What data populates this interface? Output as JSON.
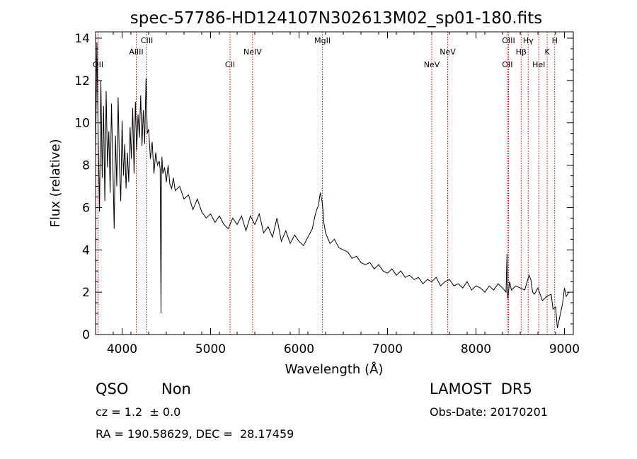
{
  "chart_data": {
    "type": "line",
    "title": "spec-57786-HD124107N302613M02_sp01-180.fits",
    "xlabel": "Wavelength (Å)",
    "ylabel": "Flux (relative)",
    "xlim": [
      3700,
      9100
    ],
    "ylim": [
      0,
      14.3
    ],
    "x_ticks": [
      4000,
      5000,
      6000,
      7000,
      8000,
      9000
    ],
    "y_ticks": [
      0,
      2,
      4,
      6,
      8,
      10,
      12,
      14
    ],
    "grid": false,
    "series": [
      {
        "x": [
          3700,
          3715,
          3730,
          3745,
          3760,
          3775,
          3790,
          3805,
          3820,
          3835,
          3850,
          3865,
          3880,
          3895,
          3910,
          3925,
          3940,
          3955,
          3970,
          3985,
          4000,
          4015,
          4030,
          4045,
          4060,
          4075,
          4090,
          4105,
          4120,
          4135,
          4150,
          4165,
          4180,
          4195,
          4210,
          4225,
          4240,
          4255,
          4270,
          4285,
          4300,
          4320,
          4340,
          4360,
          4380,
          4400,
          4420,
          4430,
          4440,
          4445,
          4450,
          4460,
          4480,
          4500,
          4520,
          4540,
          4560,
          4580,
          4600,
          4650,
          4700,
          4750,
          4800,
          4850,
          4900,
          4950,
          5000,
          5050,
          5100,
          5150,
          5200,
          5250,
          5300,
          5350,
          5400,
          5450,
          5500,
          5550,
          5600,
          5650,
          5700,
          5750,
          5800,
          5850,
          5900,
          5950,
          6000,
          6050,
          6100,
          6150,
          6180,
          6200,
          6220,
          6240,
          6260,
          6270,
          6280,
          6300,
          6320,
          6350,
          6400,
          6450,
          6500,
          6550,
          6600,
          6650,
          6700,
          6750,
          6800,
          6850,
          6900,
          6950,
          7000,
          7050,
          7100,
          7150,
          7200,
          7250,
          7300,
          7350,
          7400,
          7450,
          7500,
          7550,
          7600,
          7650,
          7700,
          7750,
          7800,
          7850,
          7900,
          7950,
          8000,
          8050,
          8100,
          8150,
          8200,
          8250,
          8300,
          8340,
          8350,
          8355,
          8360,
          8380,
          8400,
          8450,
          8500,
          8550,
          8600,
          8620,
          8640,
          8660,
          8700,
          8750,
          8800,
          8850,
          8870,
          8900,
          8920,
          8950,
          8980,
          9000,
          9020,
          9050
        ],
        "y": [
          8.5,
          13.8,
          9.2,
          5.8,
          12.0,
          7.4,
          10.8,
          6.3,
          11.5,
          7.9,
          9.6,
          6.7,
          10.9,
          8.1,
          5.0,
          9.4,
          7.0,
          11.2,
          8.0,
          6.3,
          10.1,
          7.5,
          9.0,
          6.9,
          8.6,
          7.2,
          9.8,
          8.3,
          10.7,
          7.6,
          11.0,
          8.7,
          10.4,
          9.3,
          11.3,
          8.9,
          10.6,
          9.0,
          12.1,
          9.5,
          9.7,
          8.3,
          9.1,
          7.6,
          8.6,
          8.0,
          8.2,
          7.8,
          1.0,
          7.5,
          8.4,
          7.6,
          7.9,
          7.2,
          8.0,
          7.1,
          6.9,
          7.4,
          6.8,
          7.0,
          6.4,
          6.6,
          5.9,
          6.4,
          5.8,
          5.5,
          5.7,
          5.3,
          5.6,
          5.2,
          5.0,
          5.5,
          5.2,
          5.6,
          4.9,
          5.6,
          5.2,
          5.7,
          4.8,
          5.1,
          4.6,
          5.5,
          4.4,
          4.9,
          4.3,
          4.7,
          4.4,
          4.2,
          4.6,
          5.0,
          5.6,
          5.9,
          6.1,
          6.7,
          6.3,
          5.9,
          5.3,
          4.8,
          4.6,
          4.3,
          4.5,
          4.1,
          4.0,
          3.9,
          3.6,
          3.7,
          3.4,
          3.3,
          3.4,
          3.1,
          3.3,
          3.0,
          2.9,
          3.1,
          2.8,
          3.0,
          2.7,
          2.8,
          2.6,
          2.7,
          2.4,
          2.6,
          2.5,
          2.7,
          2.3,
          2.5,
          2.6,
          2.3,
          2.4,
          2.2,
          2.5,
          2.1,
          2.3,
          2.2,
          2.0,
          2.3,
          2.1,
          2.4,
          2.2,
          2.0,
          3.8,
          2.4,
          1.7,
          2.5,
          2.1,
          2.3,
          2.2,
          2.1,
          2.8,
          2.6,
          2.0,
          1.9,
          2.2,
          1.6,
          1.8,
          1.9,
          1.2,
          1.3,
          0.3,
          0.9,
          1.5,
          2.2,
          1.8,
          2.0
        ]
      }
    ],
    "lines": [
      {
        "label": "OII",
        "x": 3728,
        "row": 2
      },
      {
        "label": "AlIII",
        "x": 4160,
        "row": 1
      },
      {
        "label": "CIII",
        "x": 4280,
        "row": 0
      },
      {
        "label": "CII",
        "x": 5220,
        "row": 2
      },
      {
        "label": "NeIV",
        "x": 5475,
        "row": 1
      },
      {
        "label": "MgII",
        "x": 6265,
        "row": 0
      },
      {
        "label": "NeV",
        "x": 7500,
        "row": 2
      },
      {
        "label": "NeV",
        "x": 7680,
        "row": 1
      },
      {
        "label": "OII",
        "x": 8355,
        "row": 2
      },
      {
        "label": "OIII",
        "x": 8368,
        "row": 0
      },
      {
        "label": "Hβ",
        "x": 8510,
        "row": 1
      },
      {
        "label": "Hγ",
        "x": 8590,
        "row": 0
      },
      {
        "label": "HeI",
        "x": 8710,
        "row": 2
      },
      {
        "label": "K",
        "x": 8805,
        "row": 1
      },
      {
        "label": "H",
        "x": 8890,
        "row": 0
      }
    ]
  },
  "info": {
    "class": "QSO",
    "subclass": "Non",
    "cz": "cz = 1.2  ± 0.0",
    "coords": "RA = 190.58629, DEC =  28.17459",
    "survey": "LAMOST  DR5",
    "obs_date": "Obs-Date: 20170201"
  },
  "colors": {
    "spectrum": "#000000",
    "marker": "#c00000",
    "axis": "#000000"
  }
}
